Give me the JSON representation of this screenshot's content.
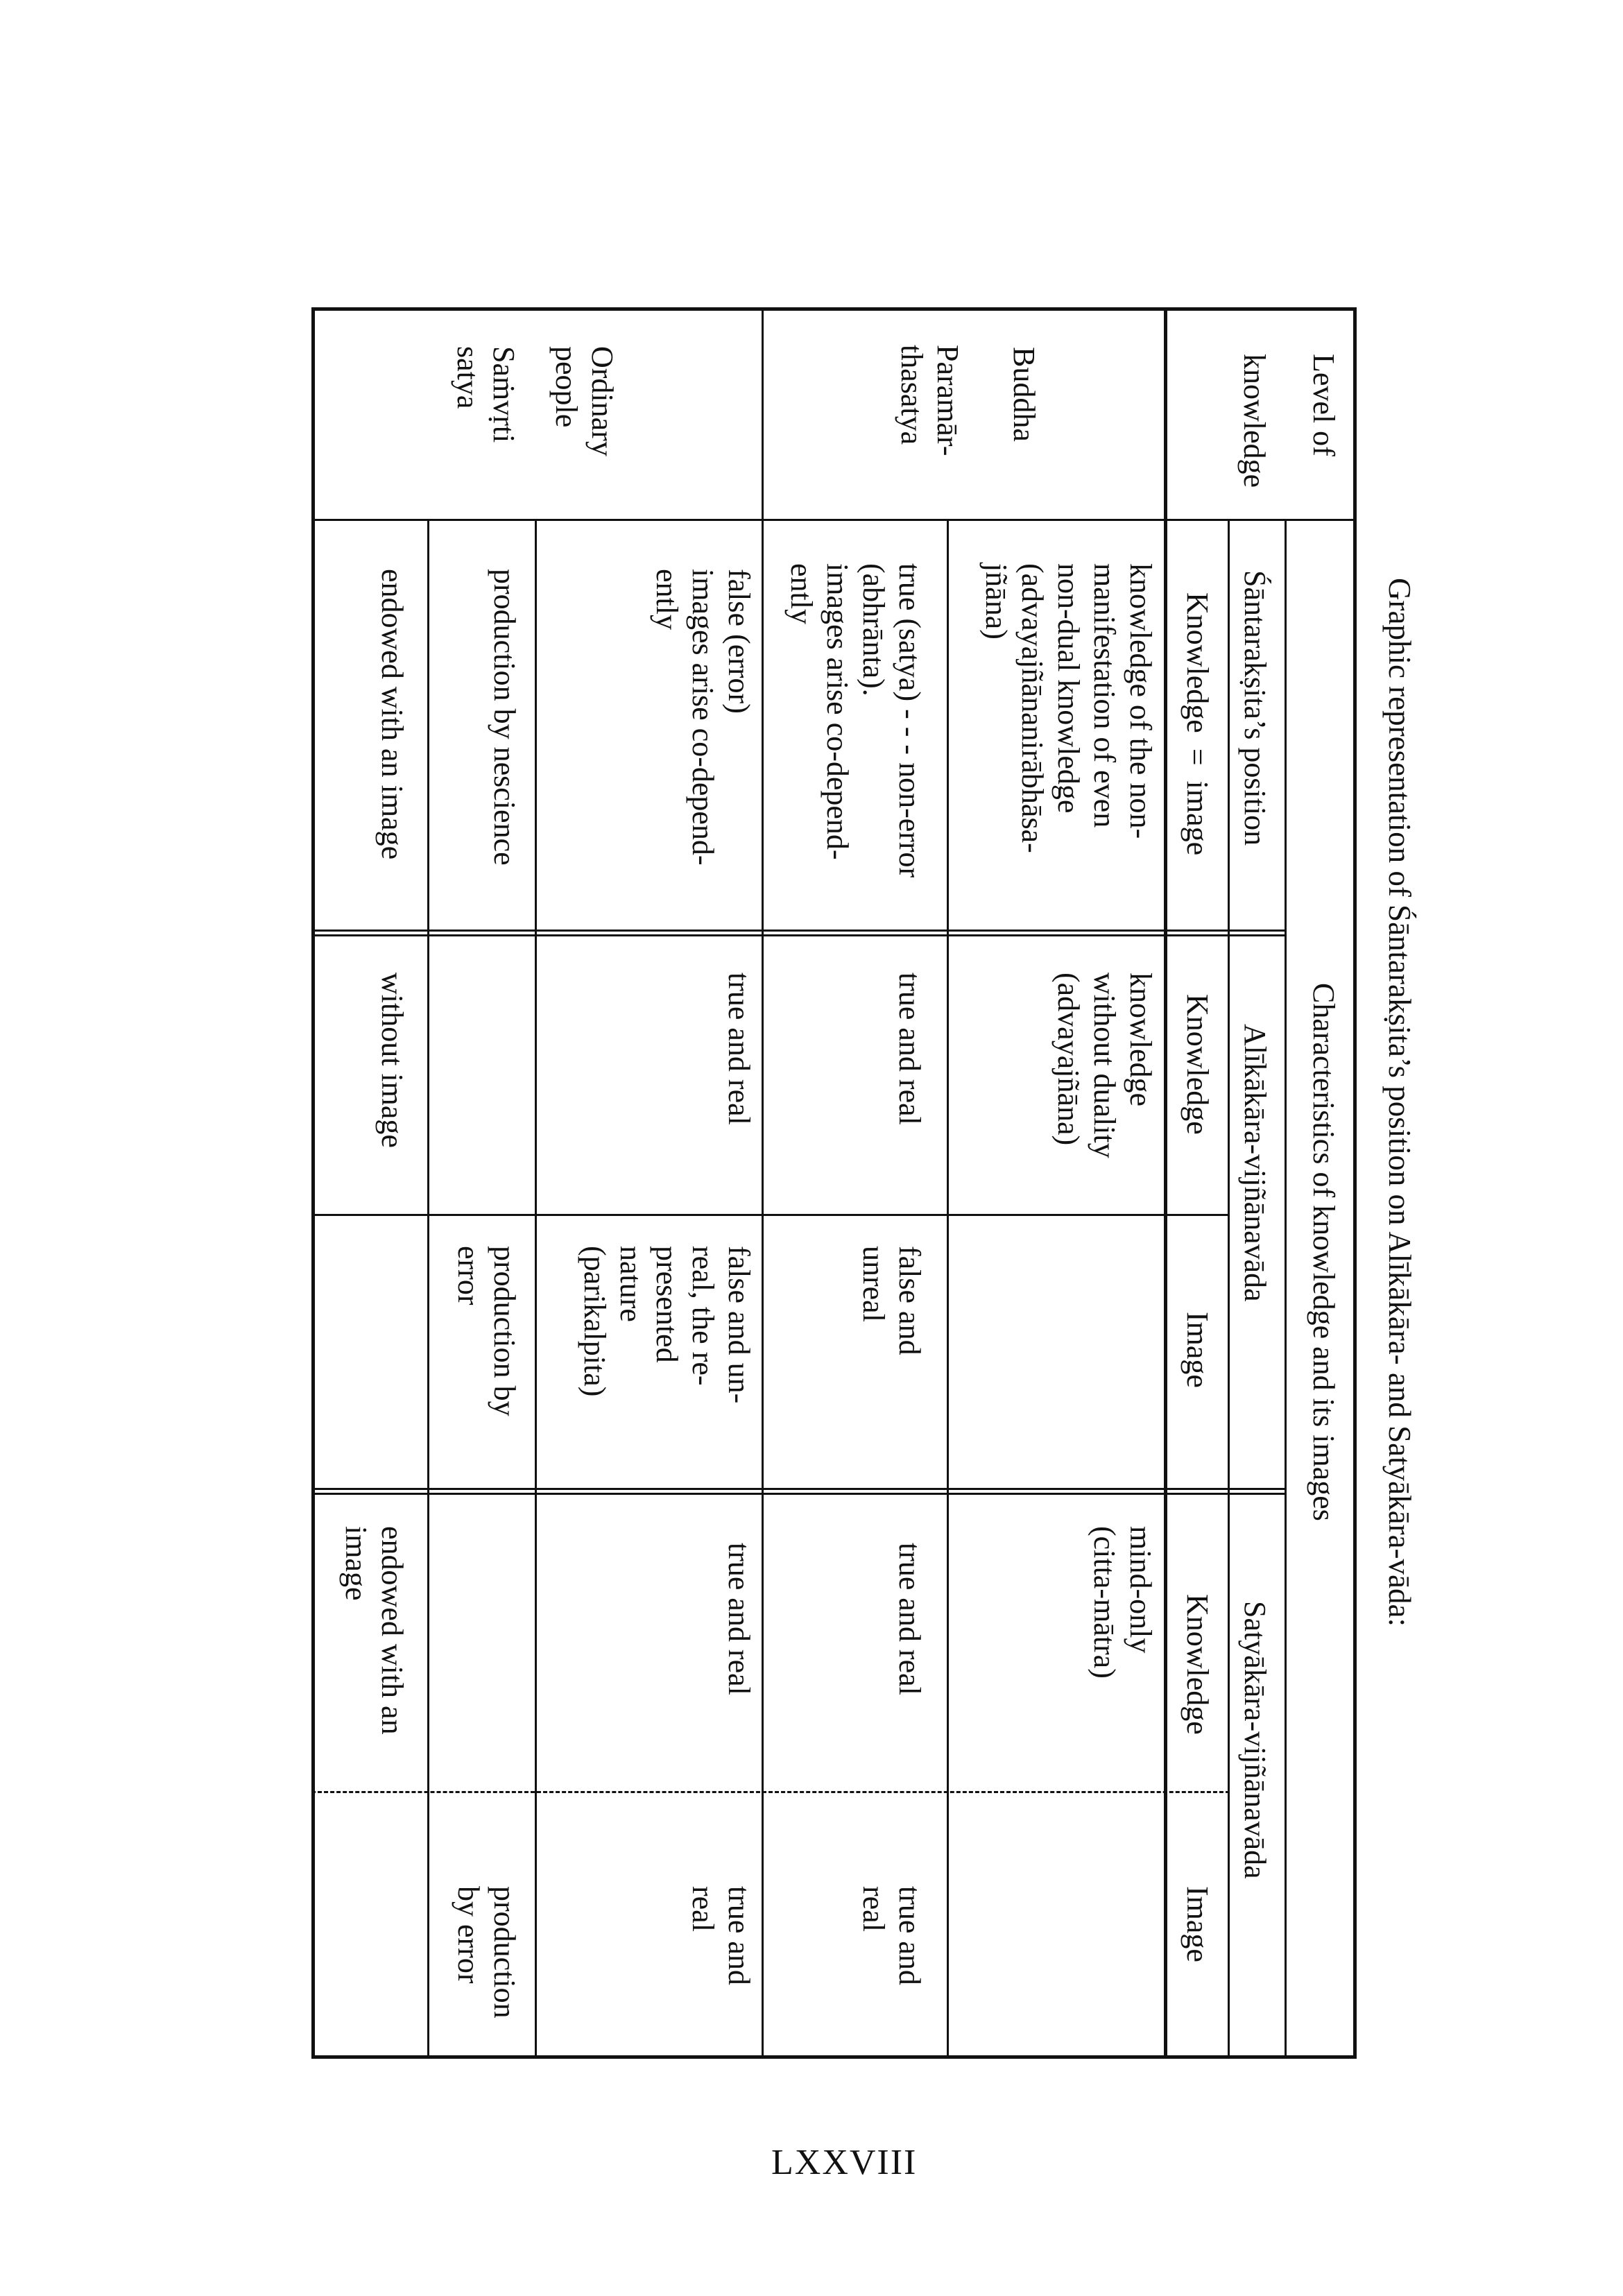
{
  "title": "Graphic representation of Śāntarakṣita’s position on Alīkākāra- and Satyākāra-vāda:",
  "header": {
    "level": "Level of\nknowledge",
    "characteristics": "Characteristics of knowledge and its images",
    "santaraksita": "Śāntarakṣita’s position",
    "alikakara": "Alīkākāra-vijñānavāda",
    "satyakara": "Satyākāra-vijñānavāda",
    "knowledge_eq_image": "Knowledge  =  image",
    "alik_knowledge": "Knowledge",
    "alik_image": "Image",
    "saty_knowledge": "Knowledge",
    "saty_image": "Image"
  },
  "levels": {
    "buddha": "Buddha",
    "paramarthasatya": "Paramār-\nthasatya",
    "ordinary": "Ordinary\npeople",
    "samvrti": "Saṁvṛti\nsatya"
  },
  "rows": {
    "buddha": {
      "santaraksita": "knowledge of the non-\nmanifestation of even\nnon-dual knowledge\n(advayajñānanirābhāsa-\njñāna)",
      "alik_knowledge": "knowledge\nwithout duality\n(advayajñāna)",
      "alik_image": "",
      "saty_knowledge": "mind-only\n(citta-mātra)",
      "saty_image": ""
    },
    "paramartha": {
      "santaraksita": "true (satya) - - - non-error\n(abhrānta).\nimages arise co-depend-\nently",
      "alik_knowledge": "true and real",
      "alik_image": "false and\nunreal",
      "saty_knowledge": "true and real",
      "saty_image": "true and\nreal"
    },
    "ordinary": {
      "santaraksita": "false (error)\nimages arise co-depend-\nently",
      "alik_knowledge": "true and real",
      "alik_image": "false and un-\nreal, the re-\npresented\nnature\n(parikalpita)",
      "saty_knowledge": "true and real",
      "saty_image": "true and\nreal"
    },
    "production": {
      "santaraksita": "production by nescience",
      "alik_knowledge": "",
      "alik_image": "production by\nerror",
      "saty_knowledge": "",
      "saty_image": "production\nby error"
    },
    "endowed": {
      "santaraksita": "endowed with an image",
      "alik_knowledge": "without image",
      "alik_image": "",
      "saty_knowledge": "endowed with an\nimage",
      "saty_image": ""
    }
  },
  "page_number": "LXXVIII"
}
